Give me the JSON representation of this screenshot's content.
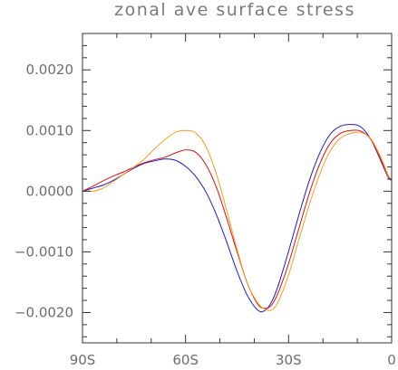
{
  "chart_data": {
    "type": "line",
    "title": "zonal ave surface stress",
    "xlabel": "",
    "ylabel": "",
    "xlim": [
      -90,
      0
    ],
    "ylim": [
      -0.0025,
      0.0026
    ],
    "x_ticks": [
      {
        "value": -90,
        "label": "90S"
      },
      {
        "value": -60,
        "label": "60S"
      },
      {
        "value": -30,
        "label": "30S"
      },
      {
        "value": 0,
        "label": "0"
      }
    ],
    "y_ticks": [
      {
        "value": 0.002,
        "label": "0.0020"
      },
      {
        "value": 0.001,
        "label": "0.0010"
      },
      {
        "value": 0.0,
        "label": "0.0000"
      },
      {
        "value": -0.001,
        "label": "−0.0010"
      },
      {
        "value": -0.002,
        "label": "−0.0020"
      }
    ],
    "x_minor_step": 10,
    "y_minor_step": 0.0002,
    "grid": false,
    "series": [
      {
        "color": "#1a1acc",
        "x": [
          -90,
          -87,
          -84,
          -81,
          -78,
          -75,
          -72,
          -69,
          -66,
          -63,
          -60,
          -57,
          -54,
          -51,
          -48,
          -45,
          -42,
          -39,
          -37,
          -35,
          -33,
          -30,
          -27,
          -24,
          -21,
          -18,
          -15,
          -12,
          -9,
          -6,
          -3,
          -1,
          0
        ],
        "y": [
          0.0,
          5e-05,
          0.0001,
          0.00018,
          0.00028,
          0.00038,
          0.00046,
          0.0005,
          0.00053,
          0.00051,
          0.00041,
          0.00024,
          -2e-05,
          -0.00039,
          -0.00084,
          -0.00132,
          -0.00172,
          -0.00196,
          -0.00197,
          -0.00183,
          -0.00155,
          -0.00099,
          -0.00039,
          0.00017,
          0.00062,
          0.00093,
          0.00107,
          0.0011,
          0.00106,
          0.00085,
          0.00048,
          0.00023,
          0.00018
        ]
      },
      {
        "color": "#dd1111",
        "x": [
          -90,
          -87,
          -84,
          -81,
          -78,
          -75,
          -72,
          -69,
          -66,
          -63,
          -60,
          -57,
          -54,
          -51,
          -48,
          -45,
          -42,
          -39,
          -37,
          -35,
          -33,
          -30,
          -27,
          -24,
          -21,
          -18,
          -15,
          -12,
          -9,
          -6,
          -3,
          -1,
          0
        ],
        "y": [
          0.0,
          8e-05,
          0.00017,
          0.00025,
          0.00032,
          0.0004,
          0.00047,
          0.00052,
          0.00056,
          0.00063,
          0.00068,
          0.00064,
          0.00043,
          6e-05,
          -0.00045,
          -0.001,
          -0.00152,
          -0.00186,
          -0.00193,
          -0.00188,
          -0.00167,
          -0.00119,
          -0.00061,
          -4e-05,
          0.00044,
          0.00078,
          0.00095,
          0.001,
          0.00099,
          0.00085,
          0.0005,
          0.00024,
          0.00018
        ]
      },
      {
        "color": "#ff9922",
        "x": [
          -90,
          -87,
          -84,
          -81,
          -78,
          -75,
          -72,
          -69,
          -66,
          -63,
          -60,
          -57,
          -54,
          -51,
          -48,
          -45,
          -42,
          -39,
          -37,
          -35,
          -33,
          -30,
          -27,
          -24,
          -21,
          -18,
          -15,
          -12,
          -9,
          -6,
          -3,
          -1,
          0
        ],
        "y": [
          0.0,
          0.0,
          5e-05,
          0.00016,
          0.00028,
          0.0004,
          0.00053,
          0.0007,
          0.00085,
          0.00097,
          0.001,
          0.00096,
          0.00073,
          0.00028,
          -0.00032,
          -0.00096,
          -0.00152,
          -0.00184,
          -0.00194,
          -0.00196,
          -0.00182,
          -0.00138,
          -0.0008,
          -0.00023,
          0.00027,
          0.00065,
          0.00087,
          0.00095,
          0.00097,
          0.00086,
          0.00054,
          0.00026,
          0.0002
        ]
      }
    ]
  }
}
